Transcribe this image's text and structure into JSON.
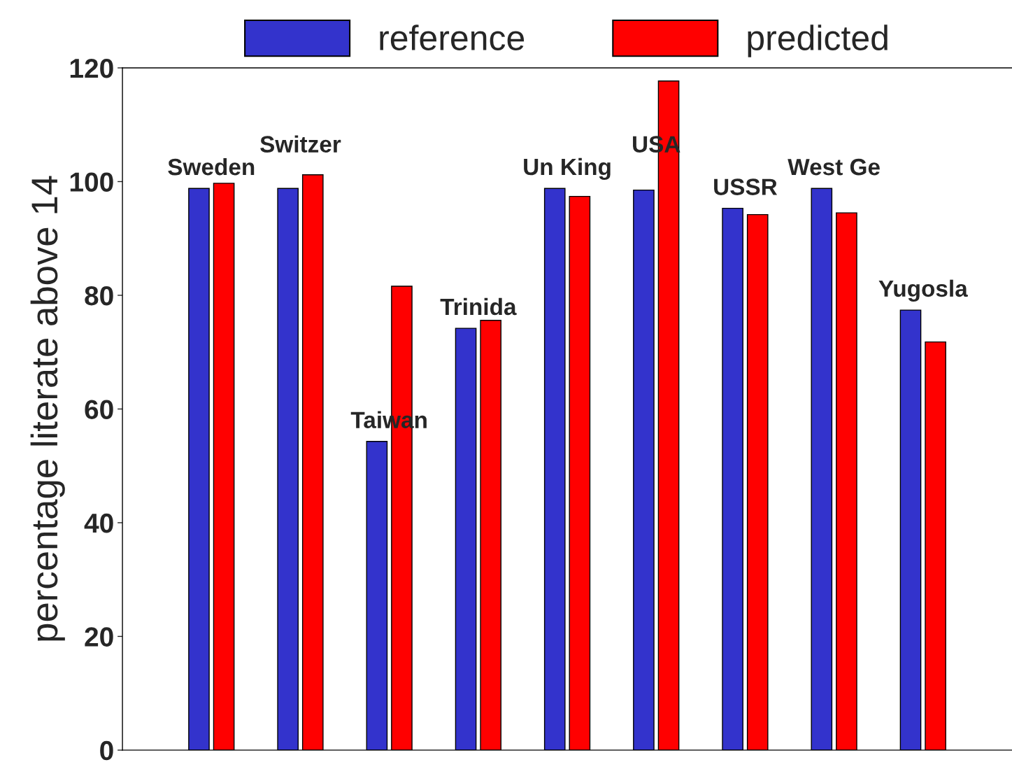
{
  "chart_data": {
    "type": "bar",
    "ylabel": "percentage literate above 14",
    "categories": [
      "Sweden",
      "Switzer",
      "Taiwan",
      "Trinida",
      "Un King",
      "USA",
      "USSR",
      "West Ge",
      "Yugosla"
    ],
    "series": [
      {
        "name": "reference",
        "color": "#3333cc",
        "values": [
          98.8,
          98.8,
          54.3,
          74.2,
          98.8,
          98.5,
          95.3,
          98.8,
          77.4
        ]
      },
      {
        "name": "predicted",
        "color": "#ff0000",
        "values": [
          99.7,
          101.2,
          81.6,
          75.6,
          97.4,
          117.7,
          94.2,
          94.5,
          71.8
        ]
      }
    ],
    "ylim": [
      0,
      120
    ],
    "yticks": [
      0,
      20,
      40,
      60,
      80,
      100,
      120
    ],
    "legend": "top",
    "grid": false
  }
}
